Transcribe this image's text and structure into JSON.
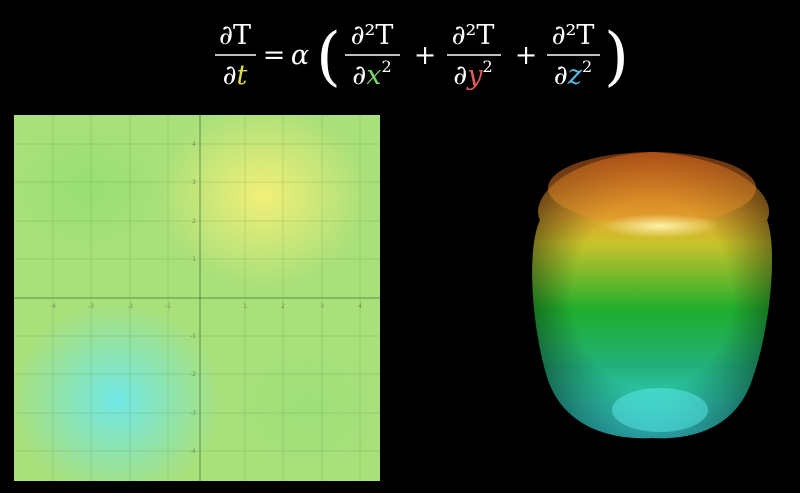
{
  "equation": {
    "lhs_num": "∂T",
    "lhs_den_d": "∂",
    "lhs_den_var": "t",
    "equals": "=",
    "alpha": "α",
    "open_paren": "(",
    "close_paren": ")",
    "plus": "+",
    "term_num": "∂²T",
    "term_den_d": "∂",
    "term_x": "x",
    "term_y": "y",
    "term_z": "z",
    "sup2": "2",
    "colors": {
      "t": "#d9d94a",
      "x": "#7bd66a",
      "y": "#e05a5a",
      "z": "#5ab8e0"
    }
  },
  "heatmap": {
    "x_ticks": [
      "-4",
      "-3",
      "-2",
      "-1",
      "1",
      "2",
      "3",
      "4"
    ],
    "y_ticks": [
      "4",
      "3",
      "2",
      "1",
      "-1",
      "-2",
      "-3",
      "-4"
    ],
    "hot_color": "#f6f078",
    "cold_color": "#6ee8eb",
    "base_color": "#a9e07a"
  },
  "surface": {
    "top_color": "#d9772a",
    "mid_color": "#1fb52e",
    "bottom_color": "#3ce8ee"
  }
}
